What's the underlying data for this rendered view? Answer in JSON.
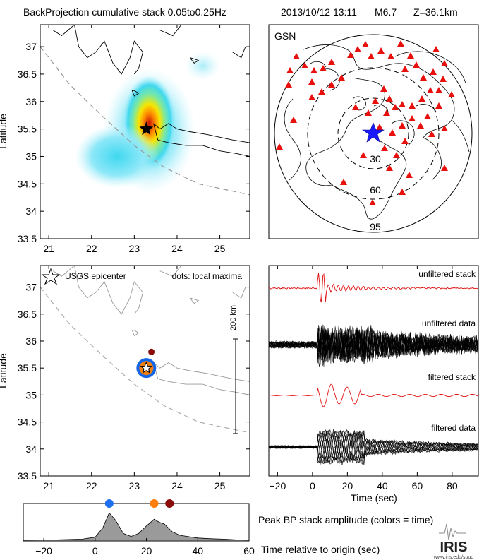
{
  "header": {
    "title": "BackProjection cumulative stack 0.05to0.25Hz",
    "event": "2013/10/12 13:11",
    "magnitude": "M6.7",
    "depth": "Z=36.1km"
  },
  "globe": {
    "network_label": "GSN",
    "distance_labels": [
      "30",
      "60",
      "95"
    ],
    "colors": {
      "stations": "#e8100c",
      "epicenter": "#1a1aff"
    }
  },
  "panels": {
    "lat_axis_label": "Latitude",
    "legend_epicenter": "USGS epicenter",
    "legend_maxima": "dots: local maxima",
    "scale_bar": "200 km",
    "trace_labels": [
      "unfiltered stack",
      "unfiltered data",
      "filtered stack",
      "filtered data"
    ],
    "trace_xlabel": "Time (sec)",
    "peak_title": "Peak BP stack amplitude (colors = time)",
    "peak_xlabel": "Time relative to origin (sec)",
    "logo_text": "IRIS",
    "logo_url": "www.iris.edu/spud"
  },
  "chart_data": [
    {
      "type": "heatmap",
      "name": "backprojection-map",
      "xticks": [
        "21",
        "22",
        "23",
        "24",
        "25"
      ],
      "yticks": [
        "37",
        "36.5",
        "36",
        "35.5",
        "35",
        "34.5",
        "34",
        "33.5"
      ],
      "xlim": [
        20.8,
        25.7
      ],
      "ylim": [
        33.5,
        37.4
      ],
      "ylabel": "Latitude",
      "epicenter": {
        "lon": 23.28,
        "lat": 35.5
      },
      "hotspots": [
        {
          "lon": 23.35,
          "lat": 35.6,
          "strength": 1.0
        },
        {
          "lon": 22.6,
          "lat": 35.0,
          "strength": 0.35
        },
        {
          "lon": 24.6,
          "lat": 36.65,
          "strength": 0.15
        }
      ]
    },
    {
      "type": "scatter",
      "name": "local-maxima-map",
      "xticks": [
        "21",
        "22",
        "23",
        "24",
        "25"
      ],
      "yticks": [
        "37",
        "36.5",
        "36",
        "35.5",
        "35",
        "34.5",
        "34",
        "33.5"
      ],
      "xlim": [
        20.8,
        25.7
      ],
      "ylim": [
        33.5,
        37.4
      ],
      "ylabel": "Latitude",
      "epicenter": {
        "lon": 23.28,
        "lat": 35.5
      },
      "maxima": [
        {
          "lon": 23.28,
          "lat": 35.5,
          "color": "#1565e8",
          "time": 5.5
        },
        {
          "lon": 23.28,
          "lat": 35.5,
          "color": "#f08010",
          "time": 23
        },
        {
          "lon": 23.4,
          "lat": 35.8,
          "color": "#8b0c0c",
          "time": 29
        }
      ]
    },
    {
      "type": "line",
      "name": "trace-stack",
      "xticks": [
        "−20",
        "0",
        "20",
        "40",
        "60",
        "80"
      ],
      "xlim": [
        -25,
        95
      ],
      "xlabel": "Time (sec)",
      "series": [
        {
          "name": "unfiltered stack",
          "color": "#e01010"
        },
        {
          "name": "unfiltered data",
          "color": "#000000"
        },
        {
          "name": "filtered stack",
          "color": "#e01010"
        },
        {
          "name": "filtered data",
          "color": "#000000"
        }
      ]
    },
    {
      "type": "area",
      "name": "peak-amplitude",
      "xticks": [
        "−20",
        "0",
        "20",
        "40",
        "60"
      ],
      "xlim": [
        -28,
        60
      ],
      "x": [
        -28,
        -15,
        -5,
        0,
        3,
        5.5,
        8,
        11,
        14,
        17,
        20,
        23,
        25,
        27,
        30,
        33,
        36,
        40,
        45,
        50,
        55,
        60
      ],
      "values": [
        0.02,
        0.03,
        0.05,
        0.1,
        0.35,
        0.75,
        0.55,
        0.2,
        0.12,
        0.2,
        0.4,
        0.58,
        0.5,
        0.45,
        0.25,
        0.15,
        0.12,
        0.08,
        0.06,
        0.05,
        0.03,
        0.02
      ],
      "markers": [
        {
          "time": 5.5,
          "color": "#1e6ff0"
        },
        {
          "time": 23,
          "color": "#ff7f0e"
        },
        {
          "time": 29,
          "color": "#8b0a0a"
        }
      ]
    }
  ]
}
